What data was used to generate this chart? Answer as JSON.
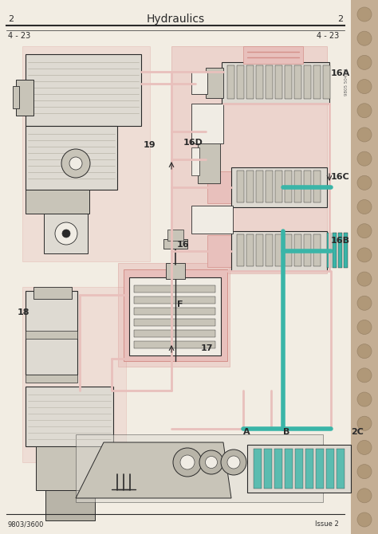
{
  "page_bg": "#f2ede3",
  "margin_bg": "#c4ae94",
  "hole_color": "#b09878",
  "hole_edge": "#9a8468",
  "title": "Hydraulics",
  "page_num_left": "2",
  "page_num_right": "2",
  "sub_left": "4 - 23",
  "sub_right": "4 - 23",
  "footer_left": "9803/3600",
  "footer_right": "Issue 2",
  "pink": "#e8c0bc",
  "pink_dark": "#d4908a",
  "teal": "#3ab5a8",
  "dark": "#2a2a2a",
  "gray_comp": "#c8c4b8",
  "gray_light": "#dedad2",
  "gray_med": "#b8b4a8",
  "white_comp": "#f0ece4",
  "diagram_border": "#888880",
  "fig_width": 4.74,
  "fig_height": 6.7,
  "dpi": 100
}
